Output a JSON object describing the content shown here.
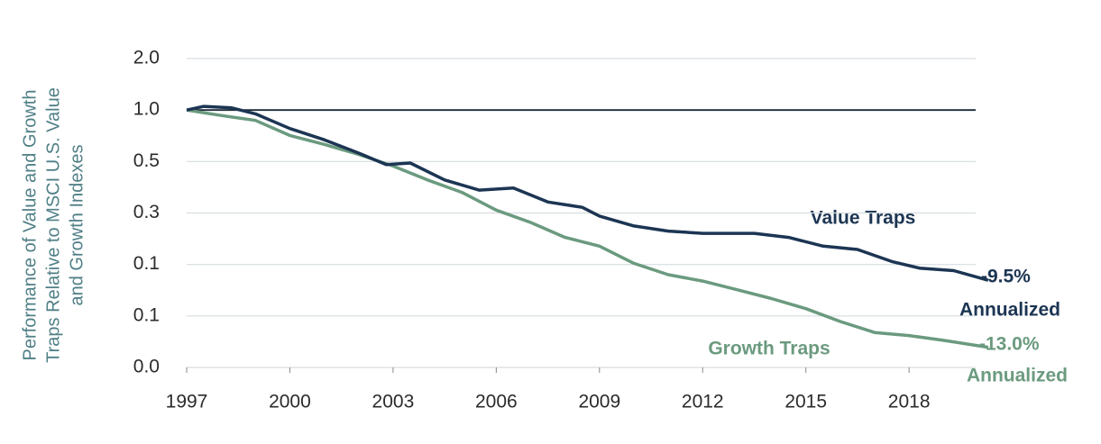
{
  "chart_data": {
    "type": "line",
    "ylabel": [
      "Performance of Value and Growth",
      "Traps Relative to MSCI U.S. Value",
      "and Growth Indexes"
    ],
    "log_scale_y": true,
    "grid": true,
    "reference_line": 1,
    "xlim": [
      1997,
      2020.6
    ],
    "xticks": [
      1997,
      2000,
      2003,
      2006,
      2009,
      2012,
      2015,
      2018
    ],
    "ylim": [
      0.03125,
      2
    ],
    "yticks": [
      {
        "value": 2,
        "label": "2.0"
      },
      {
        "value": 1,
        "label": "1.0"
      },
      0.5,
      {
        "value": 0.25,
        "label": "0.3"
      },
      {
        "value": 0.125,
        "label": "0.1"
      },
      {
        "value": 0.0625,
        "label": "0.1"
      },
      {
        "value": 0.03125,
        "label": "0.0"
      }
    ],
    "series": [
      {
        "name": "Value Traps",
        "color": "#1c3553",
        "x": [
          1997,
          1997.5,
          1998.3,
          1999,
          2000,
          2001,
          2002,
          2002.8,
          2003.5,
          2004.5,
          2005.5,
          2006.5,
          2007.5,
          2008.5,
          2009,
          2010,
          2011,
          2012,
          2013.5,
          2014.5,
          2015.5,
          2016.5,
          2017.5,
          2018.3,
          2019.3,
          2020.3
        ],
        "values": [
          1.0,
          1.05,
          1.03,
          0.95,
          0.78,
          0.67,
          0.56,
          0.48,
          0.49,
          0.39,
          0.34,
          0.35,
          0.29,
          0.27,
          0.24,
          0.21,
          0.196,
          0.19,
          0.19,
          0.18,
          0.16,
          0.153,
          0.13,
          0.119,
          0.115,
          0.101
        ]
      },
      {
        "name": "Growth Traps",
        "color": "#6b9a7f",
        "x": [
          1997,
          1998,
          1999,
          2000,
          2001,
          2002,
          2003,
          2004,
          2005,
          2006,
          2007,
          2008,
          2009,
          2010,
          2011,
          2012,
          2013,
          2014,
          2015,
          2016,
          2017,
          2018,
          2019,
          2020.3
        ],
        "values": [
          1.0,
          0.93,
          0.87,
          0.71,
          0.63,
          0.55,
          0.47,
          0.39,
          0.33,
          0.26,
          0.22,
          0.18,
          0.16,
          0.127,
          0.109,
          0.1,
          0.089,
          0.079,
          0.069,
          0.058,
          0.05,
          0.048,
          0.045,
          0.041
        ]
      }
    ],
    "annotations": [
      "Value Traps",
      "-9.5%",
      "Annualized",
      "Growth Traps",
      "-13.0%",
      "Annualized"
    ]
  }
}
